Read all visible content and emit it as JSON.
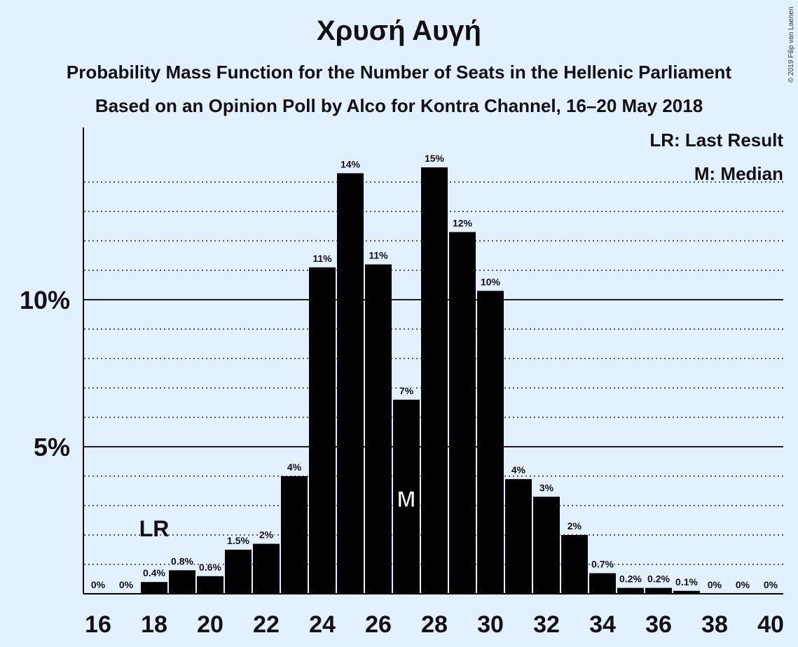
{
  "title": "Χρυσή Αυγή",
  "subtitle": "Probability Mass Function for the Number of Seats in the Hellenic Parliament",
  "subtitle2": "Based on an Opinion Poll by Alco for Kontra Channel, 16–20 May 2018",
  "copyright": "© 2019 Filip van Laenen",
  "legend": {
    "last_result": "LR: Last Result",
    "median": "M: Median"
  },
  "chart_data": {
    "type": "bar",
    "x": [
      16,
      17,
      18,
      19,
      20,
      21,
      22,
      23,
      24,
      25,
      26,
      27,
      28,
      29,
      30,
      31,
      32,
      33,
      34,
      35,
      36,
      37,
      38,
      39,
      40
    ],
    "values": [
      0,
      0,
      0.4,
      0.8,
      0.6,
      1.5,
      1.7,
      4.0,
      11.1,
      14.3,
      11.2,
      6.6,
      14.5,
      12.3,
      10.3,
      3.9,
      3.3,
      2.0,
      0.7,
      0.2,
      0.2,
      0.1,
      0,
      0,
      0
    ],
    "data_labels": [
      "0%",
      "0%",
      "0.4%",
      "0.8%",
      "0.6%",
      "1.5%",
      "2%",
      "4%",
      "11%",
      "14%",
      "11%",
      "7%",
      "15%",
      "12%",
      "10%",
      "4%",
      "3%",
      "2%",
      "0.7%",
      "0.2%",
      "0.2%",
      "0.1%",
      "0%",
      "0%",
      "0%"
    ],
    "x_tick_labels": [
      "16",
      "18",
      "20",
      "22",
      "24",
      "26",
      "28",
      "30",
      "32",
      "34",
      "36",
      "38",
      "40"
    ],
    "y_tick_labels": [
      "5%",
      "10%"
    ],
    "ylim": [
      0,
      16
    ],
    "grid": "dotted every 1%, solid at 5% and 10%",
    "last_result": 18,
    "last_result_label": "LR",
    "median": 27,
    "median_label": "M",
    "legend_placement": "top-right",
    "colors": {
      "bar": "#000000",
      "background": "#e2f0ff",
      "median_label": "#ffffff"
    }
  }
}
